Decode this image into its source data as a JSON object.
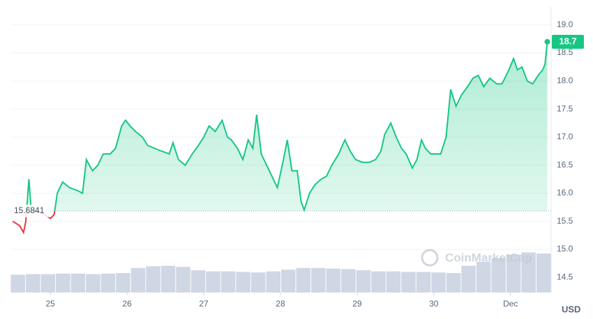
{
  "chart_data": {
    "type": "line",
    "x": [
      24.51,
      24.6,
      24.65,
      24.68,
      24.72,
      24.75,
      24.89,
      25.0,
      25.05,
      25.09,
      25.16,
      25.25,
      25.35,
      25.42,
      25.47,
      25.55,
      25.62,
      25.69,
      25.78,
      25.85,
      25.93,
      25.98,
      26.04,
      26.11,
      26.2,
      26.27,
      26.36,
      26.45,
      26.55,
      26.6,
      26.67,
      26.76,
      26.85,
      26.93,
      27.0,
      27.07,
      27.15,
      27.24,
      27.31,
      27.36,
      27.44,
      27.51,
      27.58,
      27.64,
      27.69,
      27.75,
      27.82,
      27.89,
      27.96,
      28.04,
      28.09,
      28.15,
      28.22,
      28.27,
      28.31,
      28.38,
      28.45,
      28.53,
      28.6,
      28.67,
      28.76,
      28.84,
      28.91,
      28.98,
      29.07,
      29.16,
      29.24,
      29.31,
      29.36,
      29.44,
      29.51,
      29.58,
      29.64,
      29.72,
      29.78,
      29.84,
      29.89,
      29.96,
      30.04,
      30.09,
      30.16,
      30.22,
      30.29,
      30.36,
      30.44,
      30.51,
      30.58,
      30.65,
      30.73,
      30.82,
      30.89,
      30.98,
      31.04,
      31.09,
      31.15,
      31.22,
      31.29,
      31.36,
      31.42,
      31.45,
      31.48
    ],
    "values": [
      15.5,
      15.42,
      15.3,
      15.5,
      16.25,
      15.7,
      15.65,
      15.55,
      15.62,
      16.0,
      16.2,
      16.1,
      16.05,
      16.0,
      16.6,
      16.4,
      16.5,
      16.7,
      16.7,
      16.8,
      17.2,
      17.3,
      17.2,
      17.1,
      17.0,
      16.85,
      16.8,
      16.75,
      16.7,
      16.9,
      16.6,
      16.5,
      16.7,
      16.85,
      17.0,
      17.2,
      17.1,
      17.3,
      17.0,
      16.95,
      16.8,
      16.6,
      16.95,
      16.8,
      17.4,
      16.7,
      16.5,
      16.3,
      16.1,
      16.6,
      16.95,
      16.4,
      16.4,
      15.85,
      15.7,
      16.0,
      16.15,
      16.25,
      16.3,
      16.5,
      16.7,
      16.95,
      16.75,
      16.6,
      16.55,
      16.55,
      16.6,
      16.75,
      17.05,
      17.25,
      17.0,
      16.8,
      16.7,
      16.45,
      16.6,
      16.95,
      16.8,
      16.7,
      16.7,
      16.7,
      17.0,
      17.85,
      17.55,
      17.75,
      17.9,
      18.05,
      18.1,
      17.9,
      18.05,
      17.95,
      17.95,
      18.2,
      18.4,
      18.2,
      18.25,
      18.0,
      17.95,
      18.1,
      18.2,
      18.3,
      18.7
    ],
    "color": "#16c784",
    "negative_color": "#ea3943",
    "reference_price": 15.6841,
    "current_price": 18.7,
    "xlim": [
      24.48,
      31.53
    ],
    "xticks": [
      25,
      26,
      27,
      28,
      29,
      30,
      {
        "value": 31,
        "label": "Dec"
      }
    ],
    "ylim": [
      14.23,
      19.32
    ],
    "yticks": [
      {
        "value": 19,
        "label": "19.0"
      },
      18.5,
      {
        "value": 18,
        "label": "18.0"
      },
      17.5,
      {
        "value": 17,
        "label": "17.0"
      },
      16.5,
      {
        "value": 16,
        "label": "16.0"
      },
      15.5,
      {
        "value": 15,
        "label": "15.0"
      },
      14.5
    ],
    "currency": "USD",
    "watermark": "CoinMarketCap",
    "grid": true,
    "volume": {
      "values": [
        32,
        33,
        33,
        34,
        34,
        33,
        34,
        35,
        44,
        47,
        48,
        46,
        40,
        38,
        38,
        37,
        36,
        38,
        41,
        44,
        44,
        43,
        42,
        40,
        38,
        38,
        37,
        37,
        36,
        35,
        48,
        55,
        62,
        68,
        72,
        70
      ],
      "lim": [
        0,
        100
      ],
      "color": "#cfd6e4"
    }
  }
}
